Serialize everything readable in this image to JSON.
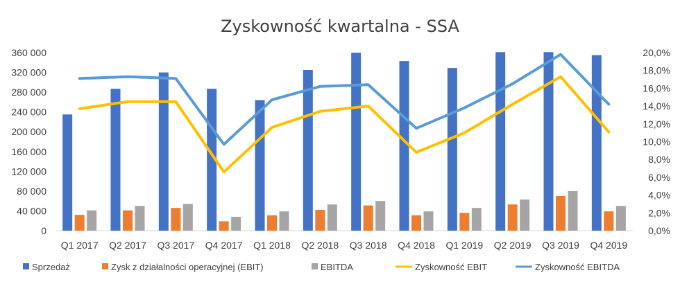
{
  "chart_data": {
    "type": "bar",
    "title": "Zyskowność kwartalna - SSA",
    "categories": [
      "Q1 2017",
      "Q2 2017",
      "Q3 2017",
      "Q4 2017",
      "Q1 2018",
      "Q2 2018",
      "Q3 2018",
      "Q4 2018",
      "Q1 2019",
      "Q2 2019",
      "Q3 2019",
      "Q4 2019"
    ],
    "y_left": {
      "min": 0,
      "max": 360000,
      "step": 40000,
      "ticks": [
        "0",
        "40 000",
        "80 000",
        "120 000",
        "160 000",
        "200 000",
        "240 000",
        "280 000",
        "320 000",
        "360 000"
      ]
    },
    "y_right": {
      "min": 0,
      "max": 0.2,
      "step": 0.02,
      "ticks": [
        "0,0%",
        "2,0%",
        "4,0%",
        "6,0%",
        "8,0%",
        "10,0%",
        "12,0%",
        "14,0%",
        "16,0%",
        "18,0%",
        "20,0%"
      ]
    },
    "grid": false,
    "legend_position": "bottom",
    "series": [
      {
        "name": "Sprzedaż",
        "kind": "bar",
        "axis": "left",
        "color": "#4472C4",
        "values": [
          235000,
          287000,
          320000,
          287000,
          264000,
          325000,
          360000,
          343000,
          329000,
          361000,
          361000,
          355000
        ]
      },
      {
        "name": "Zysk z działalności operacyjnej (EBIT)",
        "kind": "bar",
        "axis": "left",
        "color": "#ED7D31",
        "values": [
          32000,
          41000,
          46000,
          19000,
          31000,
          42000,
          51000,
          31000,
          36000,
          53000,
          70000,
          39000
        ]
      },
      {
        "name": "EBITDA",
        "kind": "bar",
        "axis": "left",
        "color": "#A5A5A5",
        "values": [
          41000,
          50000,
          54000,
          28000,
          39000,
          53000,
          60000,
          39000,
          46000,
          63000,
          80000,
          50000
        ]
      },
      {
        "name": "Zyskowność EBIT",
        "kind": "line",
        "axis": "right",
        "color": "#FFC000",
        "values": [
          0.137,
          0.145,
          0.145,
          0.066,
          0.116,
          0.134,
          0.14,
          0.088,
          0.11,
          0.142,
          0.173,
          0.111
        ]
      },
      {
        "name": "Zyskowność EBITDA",
        "kind": "line",
        "axis": "right",
        "color": "#5B9BD5",
        "values": [
          0.171,
          0.173,
          0.171,
          0.097,
          0.147,
          0.162,
          0.164,
          0.115,
          0.138,
          0.165,
          0.198,
          0.142
        ]
      }
    ]
  }
}
